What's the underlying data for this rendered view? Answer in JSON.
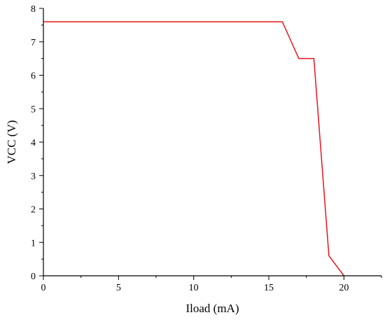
{
  "chart_data": {
    "type": "line",
    "title": "",
    "xlabel": "Iload (mA)",
    "ylabel": "VCC (V)",
    "xlim": [
      0,
      22.5
    ],
    "ylim": [
      0,
      8
    ],
    "xticks": [
      0,
      5,
      10,
      15,
      20
    ],
    "yticks": [
      0,
      1,
      2,
      3,
      4,
      5,
      6,
      7,
      8
    ],
    "grid": false,
    "legend": "none",
    "series": [
      {
        "color": "#e8141c",
        "x": [
          0,
          15.9,
          17.0,
          18.0,
          19.0,
          20.0
        ],
        "y": [
          7.6,
          7.6,
          6.5,
          6.5,
          0.6,
          0.0
        ]
      }
    ]
  }
}
